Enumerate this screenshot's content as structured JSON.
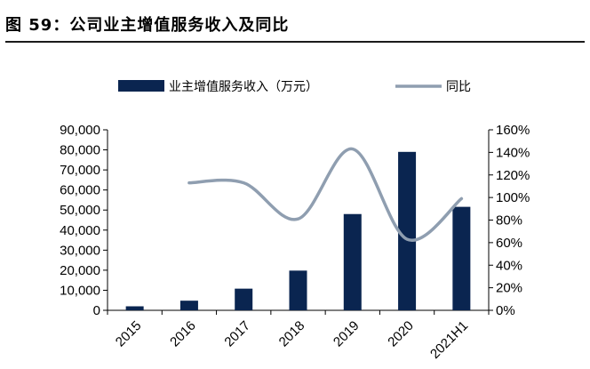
{
  "figure": {
    "title": "图 59：公司业主增值服务收入及同比"
  },
  "chart_data": {
    "type": "bar",
    "categories": [
      "2015",
      "2016",
      "2017",
      "2018",
      "2019",
      "2020",
      "2021H1"
    ],
    "series": [
      {
        "name": "业主增值服务收入（万元）",
        "type": "bar",
        "axis": "left",
        "color": "#0a2550",
        "values": [
          2000,
          4800,
          10800,
          19800,
          48000,
          79000,
          51600
        ]
      },
      {
        "name": "同比",
        "type": "line",
        "axis": "right",
        "color": "#8f9eb0",
        "values": [
          null,
          1.13,
          1.13,
          0.81,
          1.43,
          0.63,
          0.99
        ]
      }
    ],
    "y_left": {
      "min": 0,
      "max": 90000,
      "step": 10000,
      "tick_labels": [
        "0",
        "10,000",
        "20,000",
        "30,000",
        "40,000",
        "50,000",
        "60,000",
        "70,000",
        "80,000",
        "90,000"
      ]
    },
    "y_right": {
      "min": 0,
      "max": 1.6,
      "step": 0.2,
      "tick_labels": [
        "0%",
        "20%",
        "40%",
        "60%",
        "80%",
        "100%",
        "120%",
        "140%",
        "160%"
      ]
    },
    "legend_position": "top",
    "grid": false
  }
}
